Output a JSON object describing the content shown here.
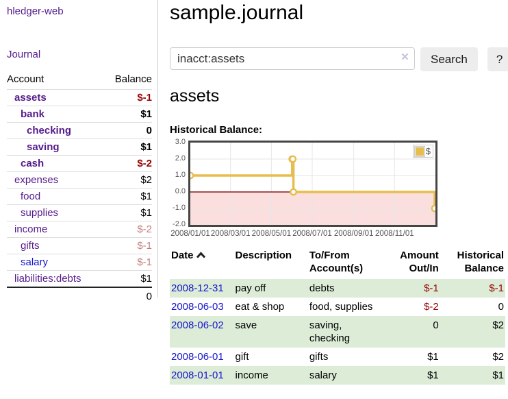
{
  "brand": "hledger-web",
  "nav": {
    "journal_label": "Journal"
  },
  "sidebar": {
    "header": {
      "account": "Account",
      "balance": "Balance"
    },
    "accounts": [
      {
        "name": "assets",
        "level": 1,
        "balance": "$-1",
        "bold": true,
        "link": "purple",
        "style": "neg"
      },
      {
        "name": "bank",
        "level": 2,
        "balance": "$1",
        "bold": true,
        "link": "purple",
        "style": "plain"
      },
      {
        "name": "checking",
        "level": 3,
        "balance": "0",
        "bold": true,
        "link": "purple",
        "style": "plain"
      },
      {
        "name": "saving",
        "level": 3,
        "balance": "$1",
        "bold": true,
        "link": "purple",
        "style": "plain"
      },
      {
        "name": "cash",
        "level": 2,
        "balance": "$-2",
        "bold": true,
        "link": "purple",
        "style": "neg"
      },
      {
        "name": "expenses",
        "level": 1,
        "balance": "$2",
        "bold": false,
        "link": "purple",
        "style": "plain"
      },
      {
        "name": "food",
        "level": 2,
        "balance": "$1",
        "bold": false,
        "link": "purple",
        "style": "plain"
      },
      {
        "name": "supplies",
        "level": 2,
        "balance": "$1",
        "bold": false,
        "link": "purple",
        "style": "plain"
      },
      {
        "name": "income",
        "level": 1,
        "balance": "$-2",
        "bold": false,
        "link": "purple",
        "style": "negf"
      },
      {
        "name": "gifts",
        "level": 2,
        "balance": "$-1",
        "bold": false,
        "link": "purple",
        "style": "negf"
      },
      {
        "name": "salary",
        "level": 2,
        "balance": "$-1",
        "bold": false,
        "link": "blue",
        "style": "negf"
      },
      {
        "name": "liabilities:debts",
        "level": 1,
        "balance": "$1",
        "bold": false,
        "link": "purple",
        "style": "plain"
      }
    ],
    "total": "0"
  },
  "main": {
    "title": "sample.journal",
    "search": {
      "value": "inacct:assets",
      "clear_icon": "×",
      "search_label": "Search",
      "help_label": "?"
    },
    "account_heading": "assets",
    "chart_title": "Historical Balance:"
  },
  "chart_data": {
    "type": "line",
    "step": true,
    "title": "Historical Balance",
    "series": [
      {
        "name": "$",
        "color": "#e6bd4f",
        "points": [
          [
            "2008-01-01",
            1
          ],
          [
            "2008-06-01",
            2
          ],
          [
            "2008-06-02",
            2
          ],
          [
            "2008-06-03",
            0
          ],
          [
            "2008-12-31",
            -1
          ]
        ]
      }
    ],
    "xdomain": [
      "2008-01-01",
      "2009-01-01"
    ],
    "ylim": [
      -2,
      3
    ],
    "yticks": [
      "3.0",
      "2.0",
      "1.0",
      "0.0",
      "-1.0",
      "-2.0"
    ],
    "xticks": [
      "2008/01/01",
      "2008/03/01",
      "2008/05/01",
      "2008/07/01",
      "2008/09/01",
      "2008/11/01"
    ],
    "legend": {
      "label": "$",
      "position": "top-right"
    },
    "grid": true,
    "gridline_color": "#e6e6e6",
    "negative_region_color": "#fbdede",
    "zero_line_color": "#8b1a1a",
    "border_color": "#454545"
  },
  "register": {
    "headers": {
      "date": "Date",
      "description": "Description",
      "accounts1": "To/From",
      "accounts2": "Account(s)",
      "amount1": "Amount",
      "amount2": "Out/In",
      "balance1": "Historical",
      "balance2": "Balance"
    },
    "rows": [
      {
        "date": "2008-12-31",
        "description": "pay off",
        "accounts": "debts",
        "amount": "$-1",
        "amount_neg": true,
        "balance": "$-1",
        "balance_neg": true
      },
      {
        "date": "2008-06-03",
        "description": "eat & shop",
        "accounts": "food, supplies",
        "amount": "$-2",
        "amount_neg": true,
        "balance": "0",
        "balance_neg": false
      },
      {
        "date": "2008-06-02",
        "description": "save",
        "accounts": "saving, checking",
        "amount": "0",
        "amount_neg": false,
        "balance": "$2",
        "balance_neg": false
      },
      {
        "date": "2008-06-01",
        "description": "gift",
        "accounts": "gifts",
        "amount": "$1",
        "amount_neg": false,
        "balance": "$2",
        "balance_neg": false
      },
      {
        "date": "2008-01-01",
        "description": "income",
        "accounts": "salary",
        "amount": "$1",
        "amount_neg": false,
        "balance": "$1",
        "balance_neg": false
      }
    ]
  },
  "colors": {
    "link_purple": "#551a8b",
    "link_blue": "#1616cc",
    "negative_strong": "#970000",
    "negative_faded": "#c17d7d",
    "row_stripe_green": "#dcecd7",
    "chart_series_gold": "#e6bd4f",
    "chart_negative_bg": "#fbdede",
    "chart_zero_line": "#8b1a1a"
  }
}
